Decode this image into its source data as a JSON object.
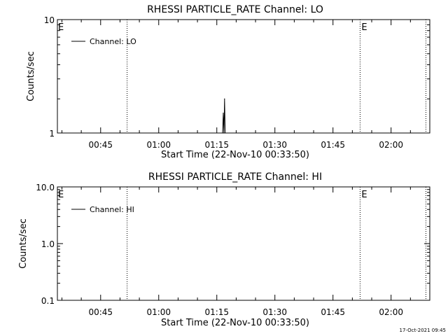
{
  "chart_data": [
    {
      "type": "line",
      "title": "RHESSI PARTICLE_RATE Channel: LO",
      "xlabel": "Start Time (22-Nov-10 00:33:50)",
      "ylabel": "Counts/sec",
      "xlim": [
        "00:33:50",
        "02:10:00"
      ],
      "x_ticks": [
        "00:45",
        "01:00",
        "01:15",
        "01:30",
        "01:45",
        "02:00"
      ],
      "y_scale": "log",
      "ylim": [
        1,
        10
      ],
      "y_ticks": [
        "1",
        "10"
      ],
      "legend": {
        "position": "top-left",
        "entries": [
          "Channel: LO"
        ]
      },
      "series": [
        {
          "name": "Channel: LO",
          "x": [
            "01:16:30",
            "01:16:40",
            "01:16:50",
            "01:17:00",
            "01:17:10"
          ],
          "values": [
            1,
            1.5,
            1,
            2,
            1
          ]
        }
      ],
      "vlines": [
        {
          "time": "00:51:50",
          "style": "dotted"
        },
        {
          "time": "01:52:00",
          "style": "dotted",
          "label": "E"
        },
        {
          "time": "02:09:00",
          "style": "dotted"
        }
      ],
      "edge_marks": [
        {
          "time": "00:33:50",
          "label": "E"
        }
      ]
    },
    {
      "type": "line",
      "title": "RHESSI PARTICLE_RATE Channel: HI",
      "xlabel": "Start Time (22-Nov-10 00:33:50)",
      "ylabel": "Counts/sec",
      "xlim": [
        "00:33:50",
        "02:10:00"
      ],
      "x_ticks": [
        "00:45",
        "01:00",
        "01:15",
        "01:30",
        "01:45",
        "02:00"
      ],
      "y_scale": "log",
      "ylim": [
        0.1,
        10
      ],
      "y_ticks": [
        "0.1",
        "1.0",
        "10.0"
      ],
      "legend": {
        "position": "top-left",
        "entries": [
          "Channel: HI"
        ]
      },
      "series": [
        {
          "name": "Channel: HI",
          "x": [],
          "values": []
        }
      ],
      "vlines": [
        {
          "time": "00:51:50",
          "style": "dotted"
        },
        {
          "time": "01:52:00",
          "style": "dotted",
          "label": "E"
        },
        {
          "time": "02:09:00",
          "style": "dotted"
        }
      ],
      "edge_marks": [
        {
          "time": "00:33:50",
          "label": "E"
        }
      ]
    }
  ],
  "footer": {
    "timestamp": "17-Oct-2021 09:45"
  }
}
